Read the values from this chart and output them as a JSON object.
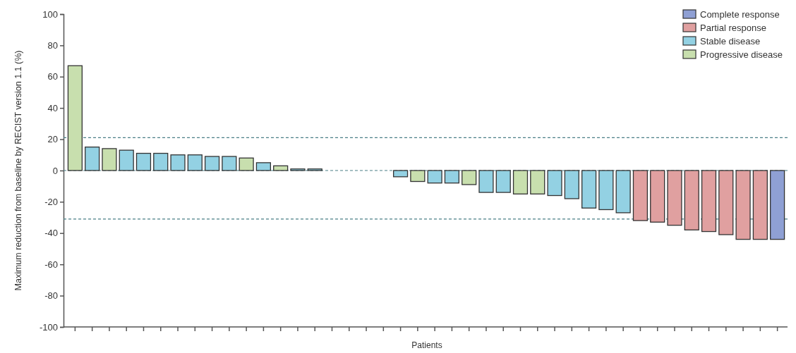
{
  "chart_data": {
    "type": "bar",
    "xlabel": "Patients",
    "ylabel": "Maximum reduction from baseline by RECIST version 1.1 (%)",
    "categories": [
      null,
      null,
      null,
      null,
      null,
      null,
      null,
      null,
      null,
      null,
      null,
      null,
      null,
      null,
      null,
      null,
      null,
      null,
      null,
      null,
      null,
      null,
      null,
      null,
      null,
      null,
      null,
      null,
      null,
      null,
      null,
      null,
      null,
      null,
      null,
      null,
      null,
      null,
      null,
      null,
      null,
      null
    ],
    "series": [
      {
        "name": "Complete response",
        "color": "#8fa0d4",
        "values": [
          null,
          null,
          null,
          null,
          null,
          null,
          null,
          null,
          null,
          null,
          null,
          null,
          null,
          null,
          null,
          null,
          null,
          null,
          null,
          null,
          null,
          null,
          null,
          null,
          null,
          null,
          null,
          null,
          null,
          null,
          null,
          null,
          null,
          null,
          null,
          null,
          null,
          null,
          null,
          null,
          null,
          -44
        ]
      },
      {
        "name": "Partial response",
        "color": "#e0a0a0",
        "values": [
          null,
          null,
          null,
          null,
          null,
          null,
          null,
          null,
          null,
          null,
          null,
          null,
          null,
          null,
          null,
          null,
          null,
          null,
          null,
          null,
          null,
          null,
          null,
          null,
          null,
          null,
          null,
          null,
          null,
          null,
          null,
          null,
          null,
          -32,
          -33,
          -35,
          -38,
          -39,
          -41,
          -44,
          -44,
          null
        ]
      },
      {
        "name": "Stable disease",
        "color": "#93d1e3",
        "values": [
          null,
          15,
          null,
          13,
          11,
          11,
          10,
          10,
          9,
          9,
          null,
          5,
          null,
          1,
          1,
          null,
          null,
          null,
          null,
          -4,
          null,
          -8,
          -8,
          null,
          -14,
          -14,
          null,
          null,
          -16,
          -18,
          -24,
          -25,
          -27,
          null,
          null,
          null,
          null,
          null,
          null,
          null,
          null,
          null
        ]
      },
      {
        "name": "Progressive disease",
        "color": "#c8dfae",
        "values": [
          67,
          null,
          14,
          null,
          null,
          null,
          null,
          null,
          null,
          null,
          8,
          null,
          3,
          null,
          null,
          null,
          null,
          null,
          null,
          null,
          -7,
          null,
          null,
          -9,
          null,
          null,
          -15,
          -15,
          null,
          null,
          null,
          null,
          null,
          null,
          null,
          null,
          null,
          null,
          null,
          null,
          null,
          null
        ]
      }
    ],
    "ylim": [
      -100,
      100
    ],
    "yticks": [
      -100,
      -80,
      -60,
      -40,
      -20,
      0,
      20,
      40,
      60,
      80,
      100
    ],
    "ref_lines": [
      {
        "axis": "y",
        "value": 21,
        "color": "#4a7f86",
        "line_style": "dashed"
      },
      {
        "axis": "y",
        "value": 0,
        "color": "#4a7f86",
        "line_style": "dashed"
      },
      {
        "axis": "y",
        "value": -31,
        "color": "#4a7f86",
        "line_style": "dashed"
      }
    ],
    "legend": "top right"
  }
}
